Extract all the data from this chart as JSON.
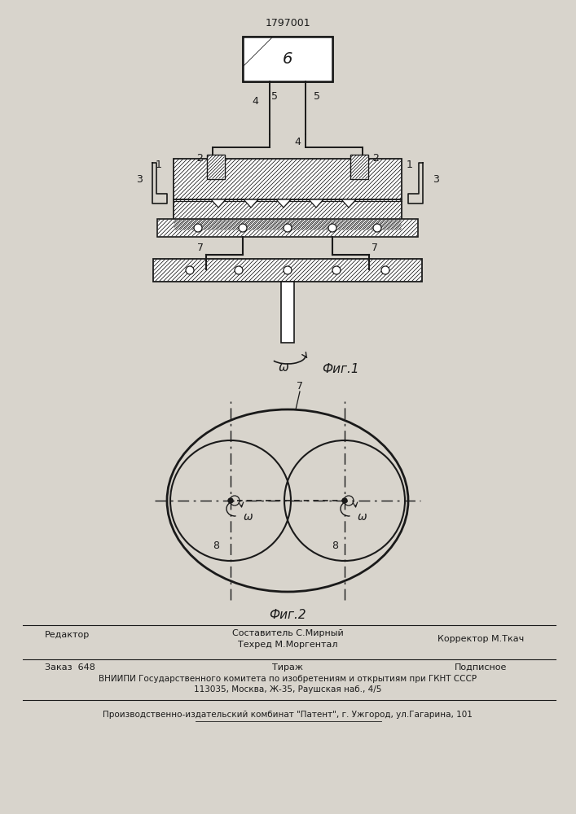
{
  "patent_number": "1797001",
  "bg_color": "#d8d4cc",
  "line_color": "#1a1a1a",
  "fig1_label": "Фиг.1",
  "fig2_label": "Фиг.2",
  "omega_symbol": "ω",
  "footer_editor": "Редактор",
  "footer_composer": "Составитель С.Мирный",
  "footer_techred": "Техред М.Моргентал",
  "footer_corrector": "Корректор М.Ткач",
  "footer_order": "Заказ  648",
  "footer_tirazh": "Тираж",
  "footer_podpisnoe": "Подписное",
  "footer_vniiipi": "ВНИИПИ Государственного комитета по изобретениям и открытиям при ГКНТ СССР",
  "footer_address": "113035, Москва, Ж-35, Раушская наб., 4/5",
  "footer_plant": "Производственно-издательский комбинат \"Патент\", г. Ужгород, ул.Гагарина, 101"
}
